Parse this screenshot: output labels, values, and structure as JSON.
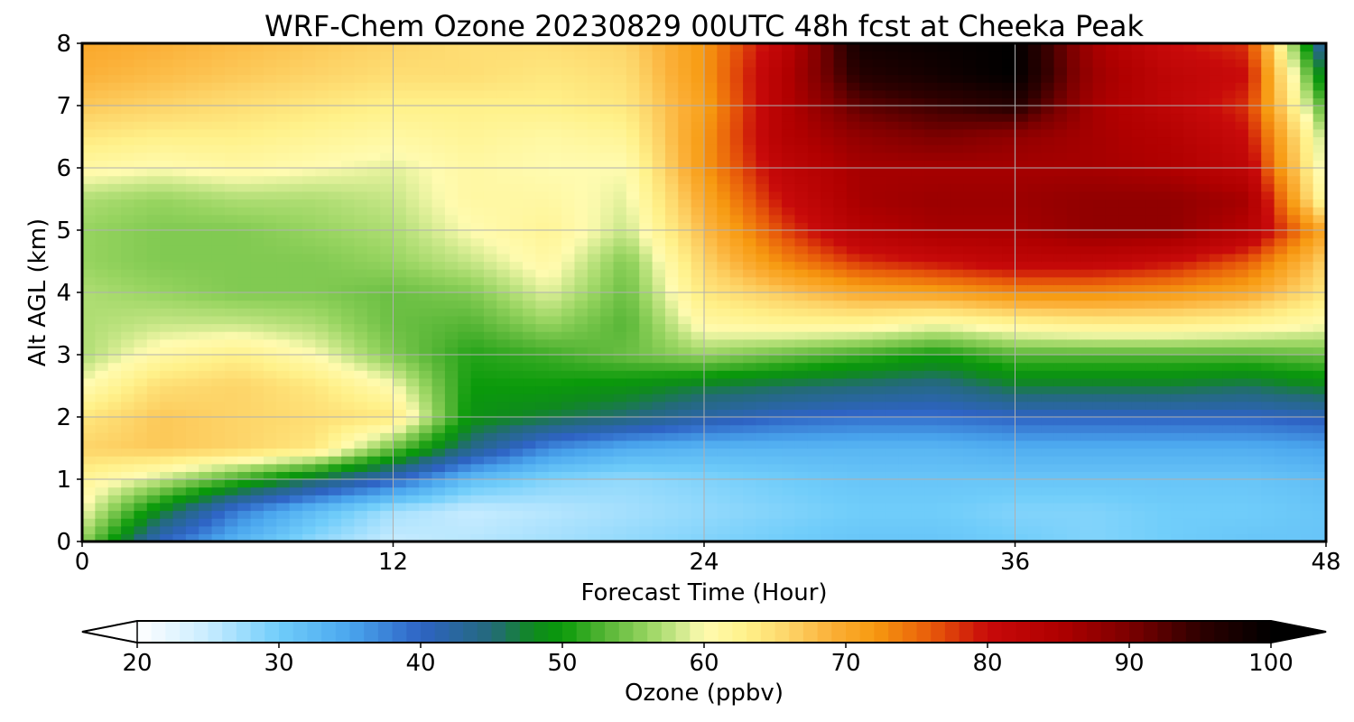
{
  "chart_data": {
    "type": "heatmap",
    "title": "WRF-Chem Ozone  20230829 00UTC 48h fcst at Cheeka Peak",
    "xlabel": "Forecast Time (Hour)",
    "ylabel": "Alt AGL (km)",
    "xlim": [
      0,
      48
    ],
    "ylim": [
      0,
      8
    ],
    "xticks": [
      0,
      12,
      24,
      36,
      48
    ],
    "yticks": [
      0,
      1,
      2,
      3,
      4,
      5,
      6,
      7,
      8
    ],
    "grid": true,
    "x": [
      0,
      3,
      6,
      9,
      12,
      15,
      18,
      21,
      24,
      27,
      30,
      33,
      36,
      39,
      42,
      45,
      48
    ],
    "y": [
      0,
      0.5,
      1,
      1.5,
      2,
      2.5,
      3,
      3.5,
      4,
      4.5,
      5,
      5.5,
      6,
      6.5,
      7,
      7.5,
      8
    ],
    "z": [
      [
        56,
        40,
        33,
        28,
        25,
        26,
        27,
        28,
        29,
        30,
        31,
        31,
        30,
        29,
        30,
        31,
        31
      ],
      [
        60,
        48,
        38,
        32,
        27,
        25,
        26,
        27,
        28,
        29,
        30,
        30,
        29,
        29,
        30,
        30,
        31
      ],
      [
        62,
        58,
        52,
        46,
        40,
        32,
        29,
        28,
        29,
        30,
        31,
        31,
        31,
        31,
        31,
        31,
        32
      ],
      [
        66,
        67,
        66,
        64,
        54,
        44,
        37,
        34,
        33,
        33,
        33,
        33,
        34,
        34,
        34,
        34,
        35
      ],
      [
        64,
        67,
        66,
        65,
        64,
        49,
        47,
        45,
        42,
        40,
        39,
        39,
        40,
        40,
        40,
        40,
        41
      ],
      [
        60,
        65,
        66,
        64,
        60,
        50,
        50,
        49,
        47,
        46,
        45,
        44,
        47,
        47,
        47,
        46,
        48
      ],
      [
        57,
        61,
        63,
        60,
        55,
        51,
        52,
        54,
        56,
        54,
        52,
        50,
        53,
        53,
        53,
        53,
        54
      ],
      [
        57,
        58,
        58,
        57,
        54,
        53,
        56,
        53,
        61,
        62,
        62,
        60,
        62,
        63,
        63,
        62,
        60
      ],
      [
        57,
        56,
        55,
        55,
        54,
        55,
        59,
        54,
        64,
        67,
        70,
        71,
        73,
        73,
        72,
        70,
        64
      ],
      [
        56,
        55,
        55,
        55,
        56,
        58,
        61,
        55,
        66,
        73,
        78,
        80,
        82,
        82,
        80,
        76,
        66
      ],
      [
        56,
        55,
        55,
        56,
        57,
        60,
        62,
        58,
        68,
        77,
        84,
        86,
        86,
        88,
        88,
        84,
        70
      ],
      [
        57,
        56,
        57,
        57,
        58,
        61,
        61,
        59,
        70,
        80,
        86,
        87,
        87,
        88,
        88,
        86,
        60
      ],
      [
        61,
        60,
        61,
        60,
        59,
        61,
        60,
        60,
        72,
        82,
        86,
        86,
        86,
        86,
        85,
        82,
        58
      ],
      [
        64,
        63,
        63,
        62,
        61,
        62,
        61,
        62,
        72,
        84,
        88,
        90,
        88,
        86,
        84,
        80,
        57
      ],
      [
        67,
        66,
        65,
        64,
        63,
        63,
        63,
        64,
        71,
        84,
        92,
        94,
        96,
        86,
        82,
        78,
        52
      ],
      [
        69,
        68,
        67,
        66,
        65,
        65,
        64,
        65,
        72,
        84,
        96,
        98,
        100,
        87,
        82,
        80,
        46
      ],
      [
        70,
        69,
        68,
        67,
        66,
        65,
        65,
        66,
        72,
        82,
        98,
        99,
        100,
        86,
        80,
        78,
        40
      ]
    ],
    "colorbar": {
      "label": "Ozone  (ppbv)",
      "min": 20,
      "max": 100,
      "ticks": [
        20,
        30,
        40,
        50,
        60,
        70,
        80,
        90,
        100
      ],
      "extend": "both"
    },
    "colormap": [
      [
        20,
        "#ffffff"
      ],
      [
        25,
        "#c8ecff"
      ],
      [
        30,
        "#70cdfa"
      ],
      [
        35,
        "#4aa6ee"
      ],
      [
        40,
        "#2e63c4"
      ],
      [
        45,
        "#246a7a"
      ],
      [
        48,
        "#0f8a1e"
      ],
      [
        50,
        "#0a9a0a"
      ],
      [
        53,
        "#55b535"
      ],
      [
        56,
        "#97d460"
      ],
      [
        58,
        "#c6e686"
      ],
      [
        60,
        "#fffbb0"
      ],
      [
        63,
        "#fff18a"
      ],
      [
        66,
        "#fdd468"
      ],
      [
        69,
        "#fbb038"
      ],
      [
        72,
        "#f79a10"
      ],
      [
        76,
        "#e85b0a"
      ],
      [
        80,
        "#c80a0a"
      ],
      [
        85,
        "#b00000"
      ],
      [
        90,
        "#7c0000"
      ],
      [
        95,
        "#2e0000"
      ],
      [
        100,
        "#000000"
      ]
    ]
  }
}
